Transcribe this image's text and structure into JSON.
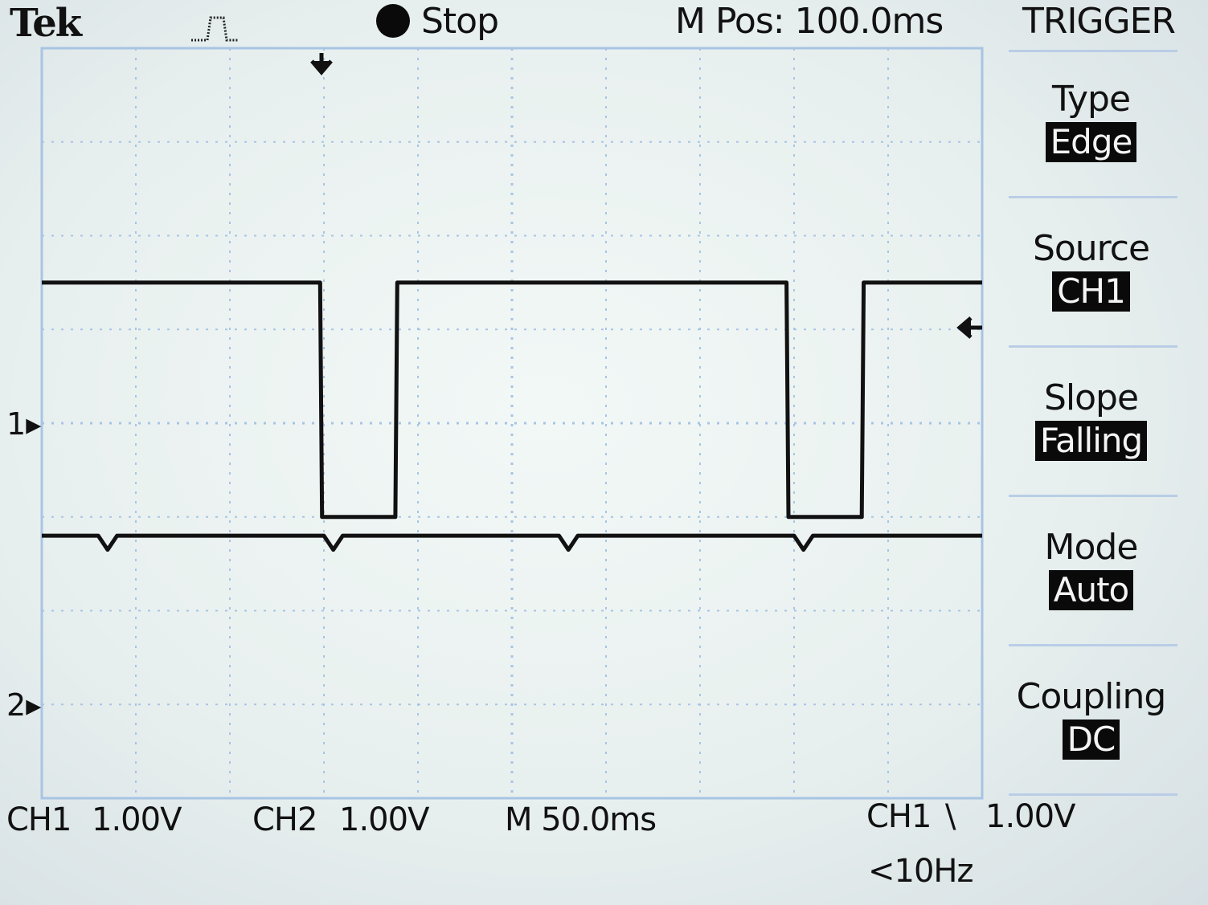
{
  "header": {
    "brand": "Tek",
    "acq_state": "Stop",
    "m_pos": "M Pos: 100.0ms",
    "menu_title": "TRIGGER",
    "icons": {
      "acq": "pulse-icon",
      "state": "stop-dot-icon",
      "trigger_pos": "trigger-position-arrow-icon",
      "trigger_level": "trigger-level-arrow-icon"
    }
  },
  "channels": {
    "ch1_marker": "1",
    "ch2_marker": "2"
  },
  "menu": [
    {
      "label": "Type",
      "value": "Edge"
    },
    {
      "label": "Source",
      "value": "CH1"
    },
    {
      "label": "Slope",
      "value": "Falling"
    },
    {
      "label": "Mode",
      "value": "Auto"
    },
    {
      "label": "Coupling",
      "value": "DC"
    }
  ],
  "footer": {
    "ch1_label": "CH1",
    "ch1_scale": "1.00V",
    "ch2_label": "CH2",
    "ch2_scale": "1.00V",
    "timebase": "M 50.0ms",
    "trigger_source": "CH1",
    "trigger_slope_glyph": "\\",
    "trigger_level": "1.00V",
    "freq": "<10Hz"
  },
  "colors": {
    "screen": "#eaf2f0",
    "grid": "#a8c4e4",
    "trace": "#111111",
    "highlight_bg": "#0a0a0a"
  },
  "chart_data": {
    "type": "line",
    "grid_divisions": {
      "x": 10,
      "y": 8
    },
    "time_per_div_ms": 50,
    "volts_per_div": 1.0,
    "x_range_ms": [
      0,
      500
    ],
    "series": [
      {
        "channel": "CH1",
        "volts": {
          "high": 2.5,
          "low": 0.0
        },
        "x_ms": [
          0,
          148,
          149,
          188,
          189,
          396,
          397,
          436,
          437,
          500
        ],
        "y_volts": [
          2.5,
          2.5,
          0.0,
          0.0,
          2.5,
          2.5,
          0.0,
          0.0,
          2.5,
          2.5
        ]
      },
      {
        "channel": "CH2",
        "volts_offset": 2.8,
        "x_ms": [
          0,
          30,
          35,
          40,
          150,
          155,
          160,
          275,
          280,
          285,
          400,
          405,
          410,
          500
        ],
        "y_volts": [
          0.0,
          0.0,
          -0.15,
          0.0,
          0.0,
          -0.15,
          0.0,
          0.0,
          -0.15,
          0.0,
          0.0,
          -0.15,
          0.0,
          0.0
        ]
      }
    ]
  }
}
